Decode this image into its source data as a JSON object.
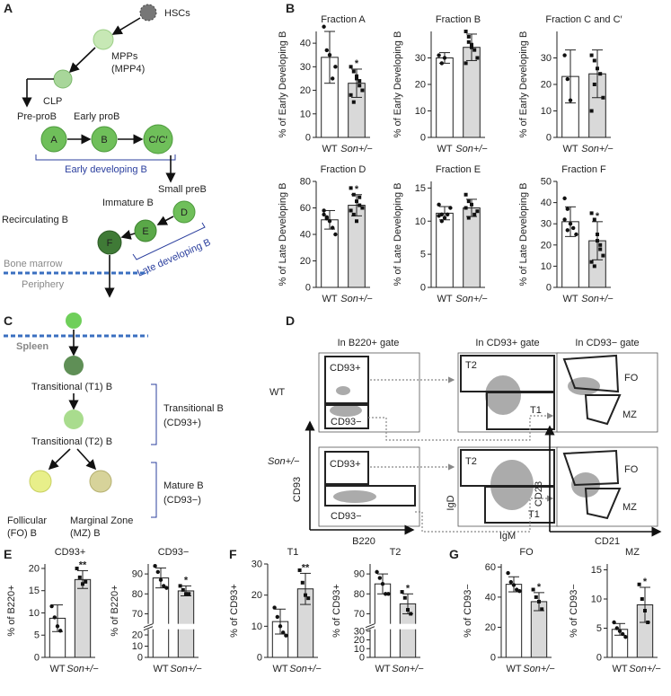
{
  "panel_labels": [
    "A",
    "B",
    "C",
    "D",
    "E",
    "F",
    "G"
  ],
  "panel_a": {
    "texts": [
      "HSCs",
      "MPPs",
      "(MPP4)",
      "CLP",
      "Pre-proB",
      "Early proB",
      "A",
      "B",
      "C/C′",
      "Early developing B",
      "Small preB",
      "Immature B",
      "D",
      "E",
      "F",
      "Late developing B",
      "Recirculating B",
      "Bone marrow",
      "Periphery"
    ]
  },
  "panel_c": {
    "texts": [
      "Spleen",
      "Transitional (T1) B",
      "Transitional (T2) B",
      "Transitional B",
      "(CD93+)",
      "Follicular",
      "(FO) B",
      "Marginal Zone",
      "(MZ) B",
      "Mature B",
      "(CD93−)"
    ]
  },
  "panel_d": {
    "texts": [
      "In B220+ gate",
      "In CD93+ gate",
      "In CD93− gate",
      "WT",
      "Son+/−",
      "CD93+",
      "CD93−",
      "T2",
      "T1",
      "FO",
      "MZ",
      "CD93+",
      "CD93−",
      "T2",
      "T1",
      "FO",
      "MZ",
      "CD93",
      "B220",
      "IgD",
      "IgM",
      "CD23",
      "CD21"
    ]
  },
  "chart_data": [
    {
      "type": "bar",
      "title": "Fraction A",
      "ylabel": "% of Early Developing B",
      "categories": [
        "WT",
        "Son+/−"
      ],
      "colors": [
        "#ffffff",
        "#d9d9d9"
      ],
      "values": [
        34,
        23
      ],
      "errors": [
        11,
        6
      ],
      "points": [
        [
          47,
          37,
          35,
          25,
          30
        ],
        [
          30,
          28,
          25,
          22,
          20,
          18,
          15,
          26,
          24
        ]
      ],
      "ylim": [
        0,
        45
      ],
      "yticks": [
        0,
        10,
        20,
        30,
        40
      ],
      "annotation": "*",
      "annotation_color": "#e02020"
    },
    {
      "type": "bar",
      "title": "Fraction B",
      "ylabel": "% of Early Developing B",
      "categories": [
        "WT",
        "Son+/−"
      ],
      "colors": [
        "#ffffff",
        "#d9d9d9"
      ],
      "values": [
        30,
        34
      ],
      "errors": [
        2,
        5
      ],
      "points": [
        [
          31,
          28,
          30
        ],
        [
          40,
          38,
          35,
          33,
          30,
          28,
          36,
          34
        ]
      ],
      "ylim": [
        0,
        40
      ],
      "yticks": [
        0,
        10,
        20,
        30
      ]
    },
    {
      "type": "bar",
      "title": "Fraction C and C′",
      "ylabel": "% of Early Developing B",
      "categories": [
        "WT",
        "Son+/−"
      ],
      "colors": [
        "#ffffff",
        "#d9d9d9"
      ],
      "values": [
        23,
        24
      ],
      "errors": [
        10,
        9
      ],
      "points": [
        [
          31,
          22,
          14
        ],
        [
          31,
          29,
          26,
          24,
          15,
          10,
          20
        ]
      ],
      "ylim": [
        0,
        40
      ],
      "yticks": [
        0,
        10,
        20,
        30
      ]
    },
    {
      "type": "bar",
      "title": "Fraction D",
      "ylabel": "% of Late Developing B",
      "categories": [
        "WT",
        "Son+/−"
      ],
      "colors": [
        "#ffffff",
        "#d9d9d9"
      ],
      "values": [
        51,
        62
      ],
      "errors": [
        7,
        8
      ],
      "points": [
        [
          58,
          52,
          50,
          45,
          40,
          55,
          53
        ],
        [
          75,
          70,
          65,
          62,
          60,
          58,
          55,
          50,
          68
        ]
      ],
      "ylim": [
        0,
        80
      ],
      "yticks": [
        0,
        20,
        40,
        60,
        80
      ],
      "annotation": "*",
      "annotation_color": "#e02020"
    },
    {
      "type": "bar",
      "title": "Fraction E",
      "ylabel": "% of Late Developing B",
      "categories": [
        "WT",
        "Son+/−"
      ],
      "colors": [
        "#ffffff",
        "#d9d9d9"
      ],
      "values": [
        11.2,
        12
      ],
      "errors": [
        1,
        1.3
      ],
      "points": [
        [
          12.5,
          11,
          10.5,
          11,
          12,
          10.8,
          10
        ],
        [
          14,
          13,
          12.5,
          11,
          11.5,
          12,
          10.5
        ]
      ],
      "ylim": [
        0,
        16
      ],
      "yticks": [
        0,
        5,
        10,
        15
      ]
    },
    {
      "type": "bar",
      "title": "Fraction F",
      "ylabel": "% of Late Developing B",
      "categories": [
        "WT",
        "Son+/−"
      ],
      "colors": [
        "#ffffff",
        "#d9d9d9"
      ],
      "values": [
        31,
        22
      ],
      "errors": [
        7,
        9
      ],
      "points": [
        [
          42,
          37,
          30,
          28,
          25,
          32,
          27
        ],
        [
          35,
          32,
          25,
          20,
          15,
          12,
          10,
          22,
          18
        ]
      ],
      "ylim": [
        0,
        50
      ],
      "yticks": [
        0,
        10,
        20,
        30,
        40,
        50
      ],
      "annotation": "*",
      "annotation_color": "#e02020"
    },
    {
      "type": "bar",
      "title": "CD93+",
      "ylabel": "% of B220+",
      "categories": [
        "WT",
        "Son+/−"
      ],
      "colors": [
        "#ffffff",
        "#d9d9d9"
      ],
      "values": [
        8.8,
        17.5
      ],
      "errors": [
        3,
        2
      ],
      "points": [
        [
          11.5,
          9,
          7,
          6
        ],
        [
          20,
          18,
          16.5,
          17
        ]
      ],
      "ylim": [
        0,
        21
      ],
      "yticks": [
        0,
        5,
        10,
        15,
        20
      ],
      "annotation": "**",
      "annotation_color": "#e02020"
    },
    {
      "type": "bar",
      "title": "CD93−",
      "ylabel": "% of B220+",
      "categories": [
        "WT",
        "Son+/−"
      ],
      "colors": [
        "#ffffff",
        "#d9d9d9"
      ],
      "values": [
        88,
        81.5
      ],
      "errors": [
        5,
        2.5
      ],
      "points": [
        [
          94,
          91,
          87,
          84,
          83
        ],
        [
          84,
          82,
          80,
          80
        ]
      ],
      "ylim": [
        0,
        95
      ],
      "ybreak": [
        25,
        65
      ],
      "yticks": [
        0,
        10,
        20,
        70,
        80,
        90
      ],
      "annotation": "*",
      "annotation_color": "#e02020"
    },
    {
      "type": "bar",
      "title": "T1",
      "ylabel": "% of CD93+",
      "categories": [
        "WT",
        "Son+/−"
      ],
      "colors": [
        "#ffffff",
        "#d9d9d9"
      ],
      "values": [
        11.5,
        22
      ],
      "errors": [
        4,
        5
      ],
      "points": [
        [
          16,
          13,
          10,
          8,
          7
        ],
        [
          28,
          24,
          20,
          19
        ]
      ],
      "ylim": [
        0,
        30
      ],
      "yticks": [
        0,
        10,
        20,
        30
      ],
      "annotation": "**",
      "annotation_color": "#e02020"
    },
    {
      "type": "bar",
      "title": "T2",
      "ylabel": "% of CD93+",
      "categories": [
        "WT",
        "Son+/−"
      ],
      "colors": [
        "#ffffff",
        "#d9d9d9"
      ],
      "values": [
        85,
        75
      ],
      "errors": [
        5,
        5
      ],
      "points": [
        [
          91,
          88,
          85,
          80,
          80
        ],
        [
          81,
          78,
          72,
          70
        ]
      ],
      "ylim": [
        0,
        95
      ],
      "ybreak": [
        32,
        65
      ],
      "yticks": [
        0,
        10,
        20,
        30,
        70,
        80,
        90
      ],
      "annotation": "*",
      "annotation_color": "#e02020"
    },
    {
      "type": "bar",
      "title": "FO",
      "ylabel": "% of CD93−",
      "categories": [
        "WT",
        "Son+/−"
      ],
      "colors": [
        "#ffffff",
        "#d9d9d9"
      ],
      "values": [
        48.5,
        37
      ],
      "errors": [
        5,
        6
      ],
      "points": [
        [
          56,
          50,
          48,
          45,
          44
        ],
        [
          45,
          40,
          37,
          32
        ]
      ],
      "ylim": [
        0,
        62
      ],
      "yticks": [
        0,
        20,
        40,
        60
      ],
      "annotation": "*",
      "annotation_color": "#e02020"
    },
    {
      "type": "bar",
      "title": "MZ",
      "ylabel": "% of CD93−",
      "categories": [
        "WT",
        "Son+/−"
      ],
      "colors": [
        "#ffffff",
        "#d9d9d9"
      ],
      "values": [
        4.8,
        9
      ],
      "errors": [
        1,
        3
      ],
      "points": [
        [
          6,
          5,
          4.5,
          4,
          3.5
        ],
        [
          12.5,
          10,
          8,
          6
        ]
      ],
      "ylim": [
        0,
        16
      ],
      "yticks": [
        0,
        5,
        10,
        15
      ],
      "annotation": "*",
      "annotation_color": "#e02020"
    }
  ]
}
